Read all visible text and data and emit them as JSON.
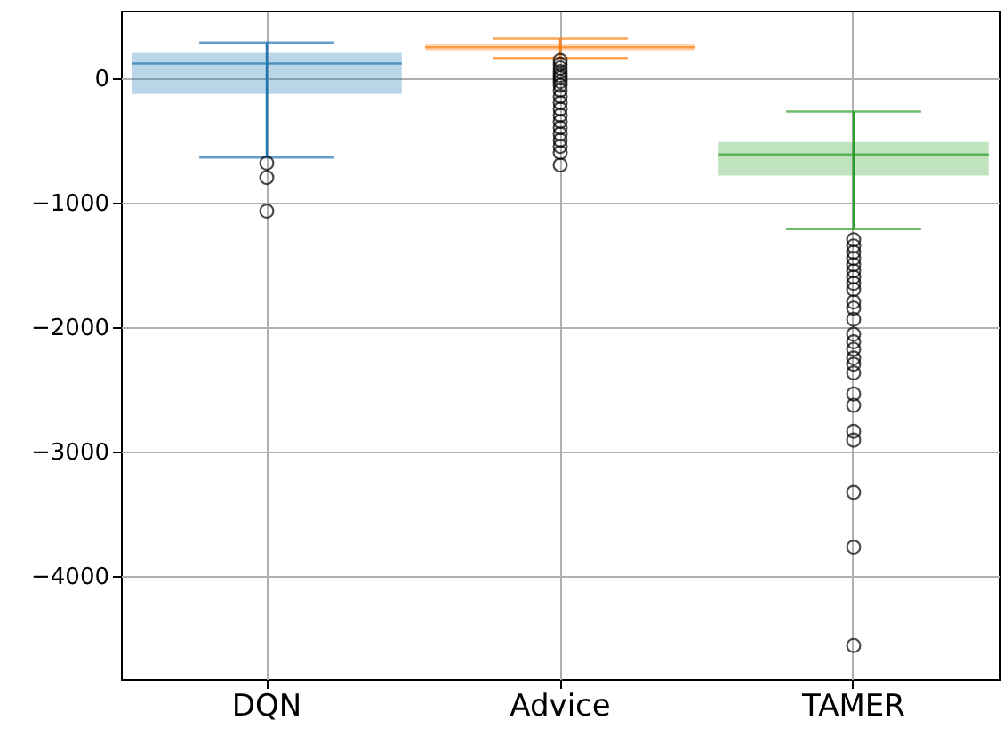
{
  "chart_data": {
    "type": "box",
    "categories": [
      "DQN",
      "Advice",
      "TAMER"
    ],
    "colors": [
      "#1f77b4",
      "#ff7f0e",
      "#2ca02c"
    ],
    "boxes": [
      {
        "low": -640,
        "q1": -130,
        "median": 115,
        "q3": 200,
        "high": 285,
        "outliers": [
          -685,
          -800,
          -1070
        ]
      },
      {
        "low": 160,
        "q1": 220,
        "median": 245,
        "q3": 270,
        "high": 315,
        "outliers": [
          140,
          110,
          80,
          50,
          20,
          0,
          -30,
          -60,
          -100,
          -150,
          -200,
          -250,
          -300,
          -350,
          -400,
          -450,
          -500,
          -550,
          -600,
          -700
        ]
      },
      {
        "low": -1215,
        "q1": -785,
        "median": -615,
        "q3": -515,
        "high": -270,
        "outliers": [
          -1300,
          -1350,
          -1400,
          -1450,
          -1500,
          -1550,
          -1600,
          -1650,
          -1700,
          -1800,
          -1850,
          -1940,
          -2060,
          -2120,
          -2180,
          -2250,
          -2300,
          -2370,
          -2540,
          -2630,
          -2840,
          -2910,
          -3330,
          -3770,
          -4560
        ]
      }
    ],
    "ylim": [
      -4830,
      540
    ],
    "yticks": [
      -4000,
      -3000,
      -2000,
      -1000,
      0
    ],
    "grid": true
  }
}
